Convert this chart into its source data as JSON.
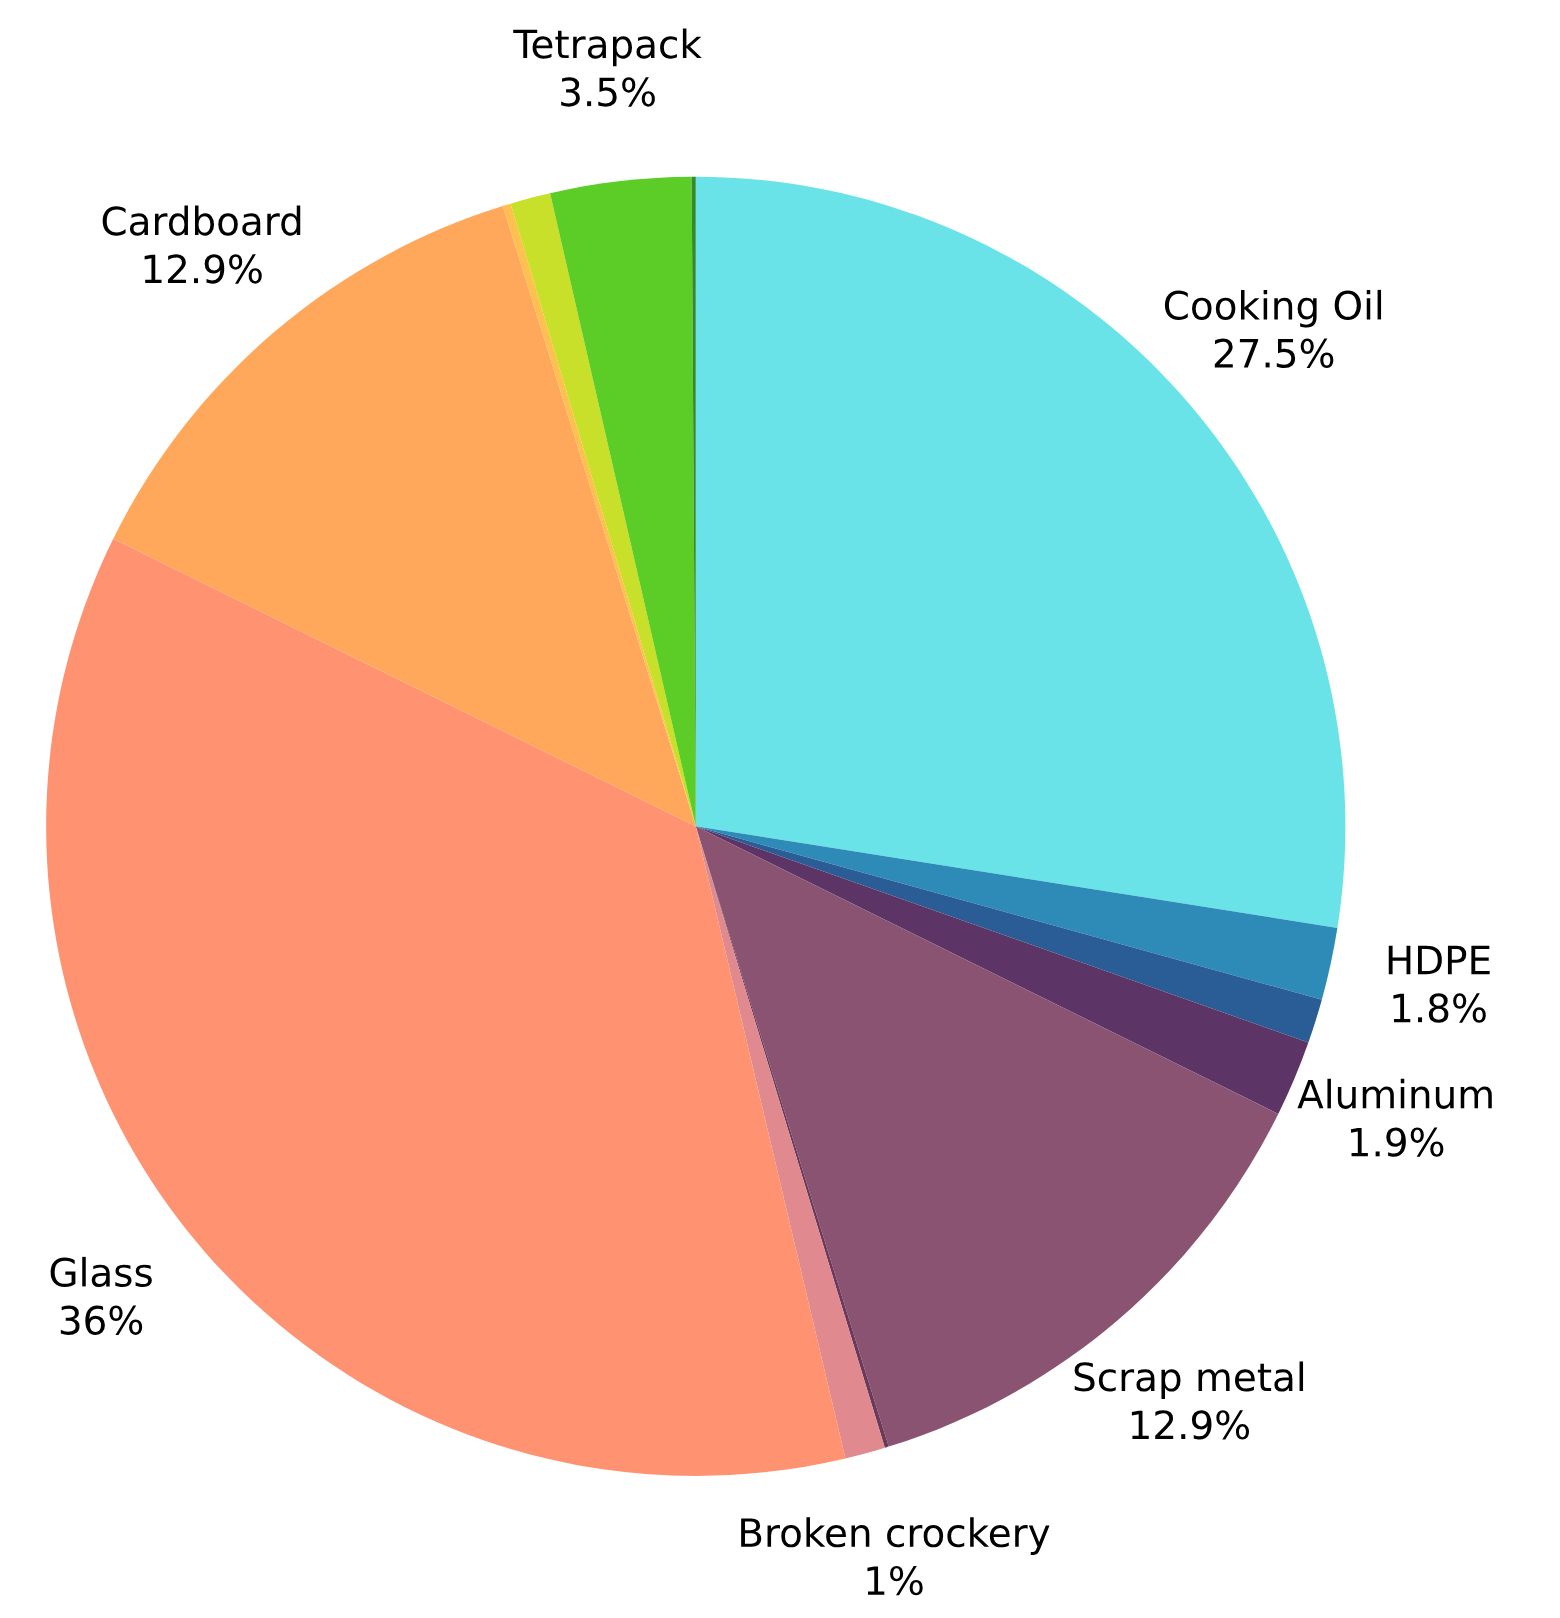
{
  "chart_data": {
    "type": "pie",
    "categories": [
      "Cooking Oil",
      "HDPE",
      null,
      "Aluminum",
      "Scrap metal",
      null,
      "Broken crockery",
      "Glass",
      "Cardboard",
      null,
      null,
      "Tetrapack",
      null
    ],
    "values": [
      27.5,
      1.8,
      1.1,
      1.9,
      12.9,
      0.1,
      1,
      36,
      12.9,
      0.2,
      1.0,
      3.5,
      0.1
    ],
    "value_labels": [
      "27.5%",
      "1.8%",
      null,
      "1.9%",
      "12.9%",
      null,
      "1%",
      "36%",
      "12.9%",
      null,
      null,
      "3.5%",
      null
    ],
    "colors": [
      "#69e3e8",
      "#2e8bb8",
      "#2a5c96",
      "#5c3566",
      "#8a5372",
      "#6b3a5a",
      "#e08a8f",
      "#ff9270",
      "#ffa75a",
      "#ffc050",
      "#c8e02a",
      "#5ccc26",
      "#2e8b2e"
    ]
  }
}
